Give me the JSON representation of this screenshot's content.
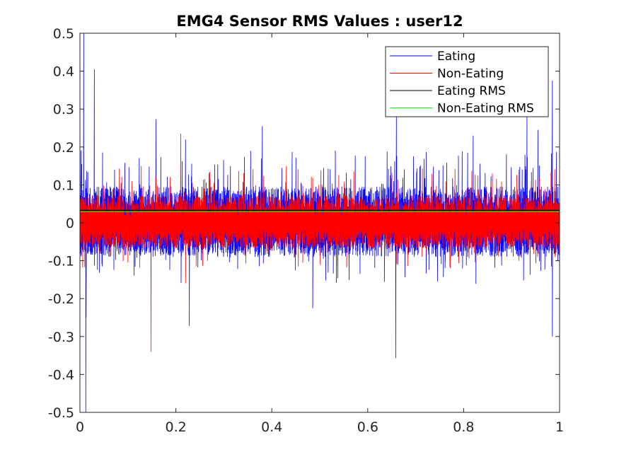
{
  "chart_data": {
    "type": "line",
    "title": "EMG4 Sensor RMS Values : user12",
    "xlabel": "",
    "ylabel": "",
    "xlim": [
      0,
      1
    ],
    "ylim": [
      -0.5,
      0.5
    ],
    "xticks": [
      0,
      0.2,
      0.4,
      0.6,
      0.8,
      1
    ],
    "xtick_labels": [
      "0",
      "0.2",
      "0.4",
      "0.6",
      "0.8",
      "1"
    ],
    "yticks": [
      0.5,
      0.4,
      0.3,
      0.2,
      0.1,
      0,
      -0.1,
      -0.2,
      -0.3,
      -0.4,
      -0.5
    ],
    "ytick_labels": [
      "0.5",
      "0.4",
      "0.3",
      "0.2",
      "0.1",
      "0",
      "-0.1",
      "-0.2",
      "-0.3",
      "-0.4",
      "-0.5"
    ],
    "grid": false,
    "legend_position": "top-right",
    "colors": {
      "eating": "#0000ff",
      "non_eating": "#ff0000",
      "eating_rms": "#000000",
      "non_eating_rms": "#00ff00"
    },
    "series": [
      {
        "name": "Eating",
        "style": "noisy-signal",
        "typical_amplitude": 0.06,
        "spikes": [
          {
            "x": 0.008,
            "y": 0.5
          },
          {
            "x": 0.012,
            "y": -0.5
          },
          {
            "x": 0.013,
            "y": -0.25
          },
          {
            "x": 0.03,
            "y": 0.405
          },
          {
            "x": 0.159,
            "y": 0.273
          },
          {
            "x": 0.22,
            "y": 0.22
          },
          {
            "x": 0.228,
            "y": -0.272
          },
          {
            "x": 0.38,
            "y": 0.255
          },
          {
            "x": 0.485,
            "y": -0.225
          },
          {
            "x": 0.66,
            "y": 0.28
          },
          {
            "x": 0.658,
            "y": -0.357
          },
          {
            "x": 0.82,
            "y": 0.23
          },
          {
            "x": 0.932,
            "y": 0.3
          },
          {
            "x": 0.955,
            "y": 0.245
          },
          {
            "x": 0.985,
            "y": 0.375
          },
          {
            "x": 0.985,
            "y": -0.3
          }
        ]
      },
      {
        "name": "Non-Eating",
        "style": "noisy-signal",
        "typical_amplitude": 0.045,
        "spikes": [
          {
            "x": 0.148,
            "y": -0.34
          },
          {
            "x": 0.128,
            "y": 0.15
          },
          {
            "x": 0.21,
            "y": 0.235
          },
          {
            "x": 0.22,
            "y": -0.16
          },
          {
            "x": 0.43,
            "y": 0.15
          },
          {
            "x": 0.86,
            "y": 0.13
          }
        ]
      },
      {
        "name": "Eating RMS",
        "style": "constant",
        "value": 0.033
      },
      {
        "name": "Non-Eating RMS",
        "style": "constant",
        "value": 0.029
      }
    ]
  }
}
